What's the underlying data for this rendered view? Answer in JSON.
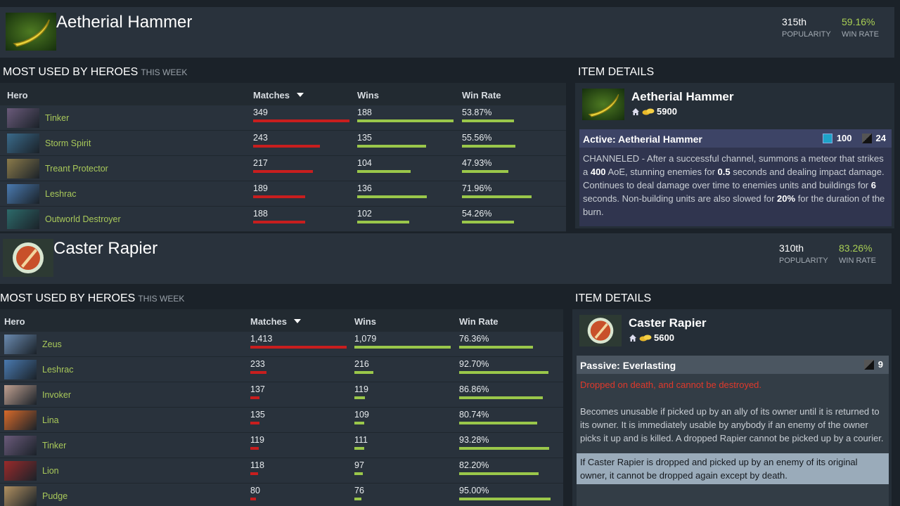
{
  "sections": [
    {
      "item": {
        "name": "Aetherial Hammer",
        "rank": "315th",
        "popularity_label": "POPULARITY",
        "win_rate": "59.16%",
        "win_rate_label": "WIN RATE"
      },
      "heroes": {
        "title": "MOST USED BY HEROES",
        "subtitle": "THIS WEEK",
        "columns": [
          "Hero",
          "Matches",
          "Wins",
          "Win Rate"
        ],
        "rows": [
          {
            "hero": "Tinker",
            "matches": 349,
            "wins": 188,
            "win_rate": {
              "value": 53.87,
              "label": "53.87%"
            }
          },
          {
            "hero": "Storm Spirit",
            "matches": 243,
            "wins": 135,
            "win_rate": {
              "value": 55.56,
              "label": "55.56%"
            }
          },
          {
            "hero": "Treant Protector",
            "matches": 217,
            "wins": 104,
            "win_rate": {
              "value": 47.93,
              "label": "47.93%"
            }
          },
          {
            "hero": "Leshrac",
            "matches": 189,
            "wins": 136,
            "win_rate": {
              "value": 71.96,
              "label": "71.96%"
            }
          },
          {
            "hero": "Outworld Destroyer",
            "matches": 188,
            "wins": 102,
            "win_rate": {
              "value": 54.26,
              "label": "54.26%"
            }
          }
        ]
      },
      "details": {
        "title": "ITEM DETAILS",
        "name": "Aetherial Hammer",
        "cost": 5900,
        "ability": {
          "title": "Active: Aetherial Hammer",
          "mana": 100,
          "cooldown": 24,
          "description": [
            "CHANNELED - After a successful channel, summons a meteor that strikes a ",
            "400",
            " AoE, stunning enemies for ",
            "0.5",
            " seconds and dealing impact damage. Continues to deal damage over time to enemies units and buildings for ",
            "6",
            " seconds. Non-building units are also slowed for ",
            "20%",
            " for the duration of the burn."
          ]
        }
      }
    },
    {
      "item": {
        "name": "Caster Rapier",
        "rank": "310th",
        "popularity_label": "POPULARITY",
        "win_rate": "83.26%",
        "win_rate_label": "WIN RATE"
      },
      "heroes": {
        "title": "MOST USED BY HEROES",
        "subtitle": "THIS WEEK",
        "columns": [
          "Hero",
          "Matches",
          "Wins",
          "Win Rate"
        ],
        "rows": [
          {
            "hero": "Zeus",
            "matches": {
              "value": 1413,
              "label": "1,413"
            },
            "wins": {
              "value": 1079,
              "label": "1,079"
            },
            "win_rate": {
              "value": 76.36,
              "label": "76.36%"
            }
          },
          {
            "hero": "Leshrac",
            "matches": 233,
            "wins": 216,
            "win_rate": {
              "value": 92.7,
              "label": "92.70%"
            }
          },
          {
            "hero": "Invoker",
            "matches": 137,
            "wins": 119,
            "win_rate": {
              "value": 86.86,
              "label": "86.86%"
            }
          },
          {
            "hero": "Lina",
            "matches": 135,
            "wins": 109,
            "win_rate": {
              "value": 80.74,
              "label": "80.74%"
            }
          },
          {
            "hero": "Tinker",
            "matches": 119,
            "wins": 111,
            "win_rate": {
              "value": 93.28,
              "label": "93.28%"
            }
          },
          {
            "hero": "Lion",
            "matches": 118,
            "wins": 97,
            "win_rate": {
              "value": 82.2,
              "label": "82.20%"
            }
          },
          {
            "hero": "Pudge",
            "matches": 80,
            "wins": 76,
            "win_rate": {
              "value": 95,
              "label": "95.00%"
            }
          }
        ]
      },
      "details": {
        "title": "ITEM DETAILS",
        "name": "Caster Rapier",
        "cost": 5600,
        "ability": {
          "title": "Passive: Everlasting",
          "cooldown": 9,
          "warning": "Dropped on death, and cannot be destroyed.",
          "description": [
            "Becomes unusable if picked up by an ally of its owner until it is returned to its owner. It is immediately usable by anybody if an enemy of the owner picks it up and is killed. A dropped Rapier cannot be picked up by a courier."
          ],
          "note": "If Caster Rapier is dropped and picked up by an enemy of its original owner, it cannot be dropped again except by death."
        }
      }
    }
  ]
}
